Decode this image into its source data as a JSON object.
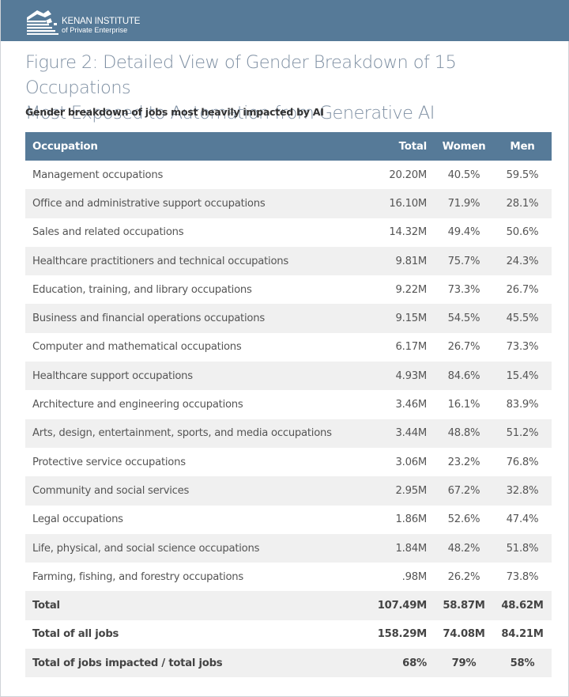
{
  "header": {
    "logo_name": "KENAN INSTITUTE",
    "logo_sub": "of Private Enterprise",
    "banner_color": "#567a98"
  },
  "figure": {
    "title_line1": "Figure 2: Detailed View of Gender Breakdown of 15 Occupations",
    "title_line2": "Most Exposed to Automation from Generative AI",
    "subtitle": "Gender breakdown of jobs most heavily impacted by AI"
  },
  "table": {
    "columns": [
      "Occupation",
      "Total",
      "Women",
      "Men"
    ],
    "rows": [
      {
        "occupation": "Management occupations",
        "total": "20.20M",
        "women": "40.5%",
        "men": "59.5%"
      },
      {
        "occupation": "Office and administrative support occupations",
        "total": "16.10M",
        "women": "71.9%",
        "men": "28.1%"
      },
      {
        "occupation": "Sales and related occupations",
        "total": "14.32M",
        "women": "49.4%",
        "men": "50.6%"
      },
      {
        "occupation": "Healthcare practitioners and technical occupations",
        "total": "9.81M",
        "women": "75.7%",
        "men": "24.3%"
      },
      {
        "occupation": "Education, training, and library occupations",
        "total": "9.22M",
        "women": "73.3%",
        "men": "26.7%"
      },
      {
        "occupation": "Business and financial operations occupations",
        "total": "9.15M",
        "women": "54.5%",
        "men": "45.5%"
      },
      {
        "occupation": "Computer and mathematical occupations",
        "total": "6.17M",
        "women": "26.7%",
        "men": "73.3%"
      },
      {
        "occupation": "Healthcare support occupations",
        "total": "4.93M",
        "women": "84.6%",
        "men": "15.4%"
      },
      {
        "occupation": "Architecture and engineering occupations",
        "total": "3.46M",
        "women": "16.1%",
        "men": "83.9%"
      },
      {
        "occupation": "Arts, design, entertainment, sports, and media occupations",
        "total": "3.44M",
        "women": "48.8%",
        "men": "51.2%"
      },
      {
        "occupation": "Protective service occupations",
        "total": "3.06M",
        "women": "23.2%",
        "men": "76.8%"
      },
      {
        "occupation": "Community and social services",
        "total": "2.95M",
        "women": "67.2%",
        "men": "32.8%"
      },
      {
        "occupation": "Legal occupations",
        "total": "1.86M",
        "women": "52.6%",
        "men": "47.4%"
      },
      {
        "occupation": "Life, physical, and social science occupations",
        "total": "1.84M",
        "women": "48.2%",
        "men": "51.8%"
      },
      {
        "occupation": "Farming, fishing, and forestry occupations",
        "total": ".98M",
        "women": "26.2%",
        "men": "73.8%"
      }
    ],
    "summary_rows": [
      {
        "occupation": "Total",
        "total": "107.49M",
        "women": "58.87M",
        "men": "48.62M"
      },
      {
        "occupation": "Total of all jobs",
        "total": "158.29M",
        "women": "74.08M",
        "men": "84.21M"
      },
      {
        "occupation": "Total of jobs impacted / total jobs",
        "total": "68%",
        "women": "79%",
        "men": "58%"
      }
    ]
  }
}
